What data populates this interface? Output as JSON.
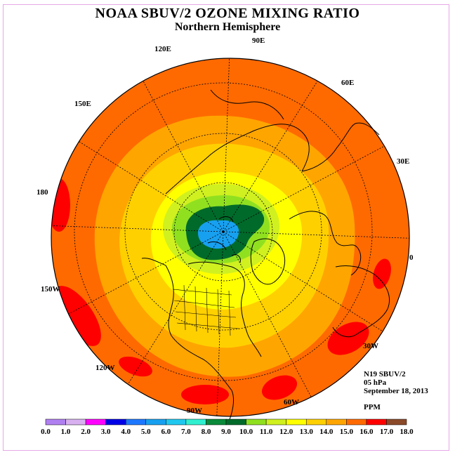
{
  "title": "NOAA SBUV/2 OZONE MIXING RATIO",
  "subtitle": "Northern Hemisphere",
  "longitude_labels": [
    "90E",
    "60E",
    "30E",
    "0",
    "30W",
    "60W",
    "90W",
    "120W",
    "150W",
    "180",
    "150E",
    "120E"
  ],
  "info": {
    "instrument": "N19 SBUV/2",
    "level": "05 hPa",
    "date": "September 18, 2013",
    "units": "PPM"
  },
  "legend": {
    "ticks": [
      "0.0",
      "1.0",
      "2.0",
      "3.0",
      "4.0",
      "5.0",
      "6.0",
      "7.0",
      "8.0",
      "9.0",
      "10.0",
      "11.0",
      "12.0",
      "13.0",
      "14.0",
      "15.0",
      "16.0",
      "17.0",
      "18.0"
    ],
    "colors": [
      "#b080f0",
      "#d8b0f0",
      "#ff00ff",
      "#0000e6",
      "#1e78ff",
      "#18a0f0",
      "#20c8f0",
      "#30f0d0",
      "#0a8a3a",
      "#006a2a",
      "#90e020",
      "#d0f020",
      "#ffff00",
      "#ffd000",
      "#ffa500",
      "#ff6a00",
      "#ff0000",
      "#8b4a2a"
    ]
  },
  "colors": {
    "field_outer": "#ff6a00",
    "field_orange": "#ffa500",
    "field_gold": "#ffd000",
    "field_yellow": "#ffff00",
    "field_lightgreen": "#d0f020",
    "field_green": "#90e020",
    "field_darkgreen": "#006a2a",
    "field_cyan": "#18a0f0",
    "max_red": "#ff0000"
  }
}
